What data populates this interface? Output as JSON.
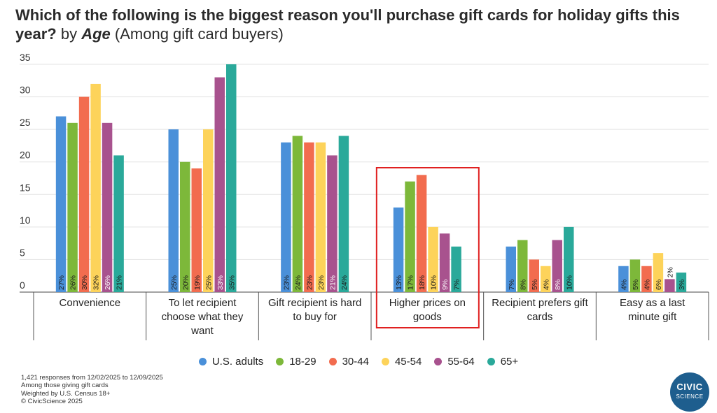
{
  "header": {
    "question": "Which of the following is the biggest reason you'll purchase gift cards for holiday gifts this year?",
    "by": "by",
    "dimension": "Age",
    "qualifier": "(Among gift card buyers)"
  },
  "chart_data": {
    "type": "bar",
    "categories": [
      "Convenience",
      "To let recipient choose what they want",
      "Gift recipient is hard to buy for",
      "Higher prices on goods",
      "Recipient prefers gift cards",
      "Easy as a last minute gift"
    ],
    "category_lines": [
      [
        "Convenience"
      ],
      [
        "To let recipient",
        "choose what they",
        "want"
      ],
      [
        "Gift recipient is hard",
        "to buy for"
      ],
      [
        "Higher prices on",
        "goods"
      ],
      [
        "Recipient prefers gift",
        "cards"
      ],
      [
        "Easy as a last",
        "minute gift"
      ]
    ],
    "series": [
      {
        "name": "U.S. adults",
        "color": "#4a90d9",
        "values": [
          27,
          25,
          23,
          13,
          7,
          4
        ]
      },
      {
        "name": "18-29",
        "color": "#7db83a",
        "values": [
          26,
          20,
          24,
          17,
          8,
          5
        ]
      },
      {
        "name": "30-44",
        "color": "#f26c4f",
        "values": [
          30,
          19,
          23,
          18,
          5,
          4
        ]
      },
      {
        "name": "45-54",
        "color": "#fdd35a",
        "values": [
          32,
          25,
          23,
          10,
          4,
          6
        ]
      },
      {
        "name": "55-64",
        "color": "#a8528e",
        "values": [
          26,
          33,
          21,
          9,
          8,
          2
        ]
      },
      {
        "name": "65+",
        "color": "#2aa99a",
        "values": [
          21,
          35,
          24,
          7,
          10,
          3
        ]
      }
    ],
    "ylim": [
      0,
      35
    ],
    "yticks": [
      0,
      5,
      10,
      15,
      20,
      25,
      30,
      35
    ],
    "grid": true,
    "legend": "bottom",
    "data_label_suffix": "%",
    "highlighted_category": "Higher prices on goods",
    "highlight_color": "#e02020"
  },
  "footnotes": [
    "1,421 responses from 12/02/2025 to 12/09/2025",
    "Among those giving gift cards",
    "Weighted by U.S. Census 18+",
    "© CivicScience 2025"
  ],
  "logo": {
    "line1": "CIVIC",
    "line2": "SCIENCE"
  }
}
